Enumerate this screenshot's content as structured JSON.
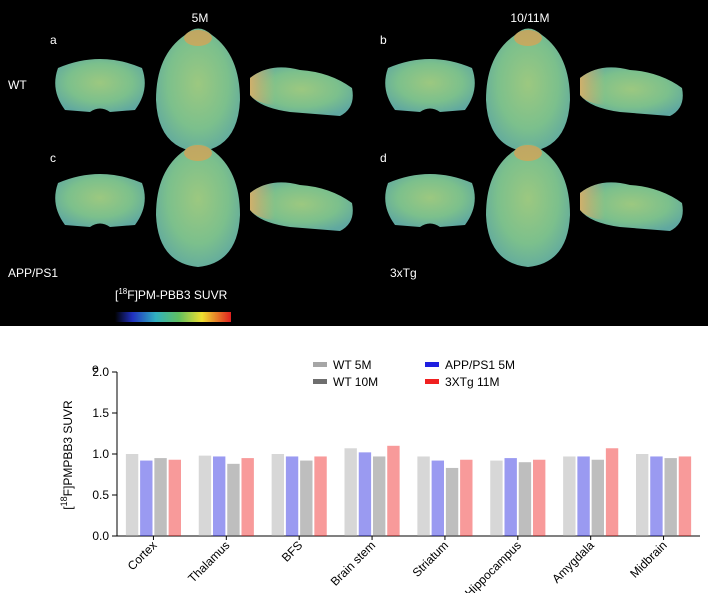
{
  "images": {
    "columns": [
      "5M",
      "10/11M"
    ],
    "panels": [
      "a",
      "b",
      "c",
      "d"
    ],
    "rows": [
      "WT",
      "APP/PS1",
      "3xTg"
    ],
    "colorbar_label": {
      "pre": "[",
      "sup": "18",
      "post": "F]PM-PBB3 SUVR"
    }
  },
  "chart_data": {
    "type": "bar",
    "panel": "e",
    "ylabel": {
      "pre": "[",
      "sup": "18",
      "post": "F]PMPBB3 SUVR"
    },
    "categories": [
      "Cortex",
      "Thalamus",
      "BFS",
      "Brain stem",
      "Striatum",
      "Hippocampus",
      "Amygdala",
      "Midbrain"
    ],
    "series": [
      {
        "name": "WT 5M",
        "color": "#a6a6a6",
        "values": [
          1.0,
          0.98,
          1.0,
          1.07,
          0.97,
          0.92,
          0.97,
          1.0
        ]
      },
      {
        "name": "APP/PS1 5M",
        "color": "#1f1fe0",
        "values": [
          0.92,
          0.97,
          0.97,
          1.02,
          0.92,
          0.95,
          0.97,
          0.97
        ]
      },
      {
        "name": "WT 10M",
        "color": "#6e6e6e",
        "values": [
          0.95,
          0.88,
          0.92,
          0.97,
          0.83,
          0.9,
          0.93,
          0.95
        ]
      },
      {
        "name": "3XTg 11M",
        "color": "#f02020",
        "values": [
          0.93,
          0.95,
          0.97,
          1.1,
          0.93,
          0.93,
          1.07,
          0.97
        ]
      }
    ],
    "ylim": [
      0,
      2.0
    ],
    "yticks": [
      {
        "value": 0,
        "label": "0.0"
      },
      {
        "value": 0.5,
        "label": "0.5"
      },
      {
        "value": 1.0,
        "label": "1.0"
      },
      {
        "value": 1.5,
        "label": "1.5"
      },
      {
        "value": 2.0,
        "label": "2.0"
      }
    ]
  }
}
